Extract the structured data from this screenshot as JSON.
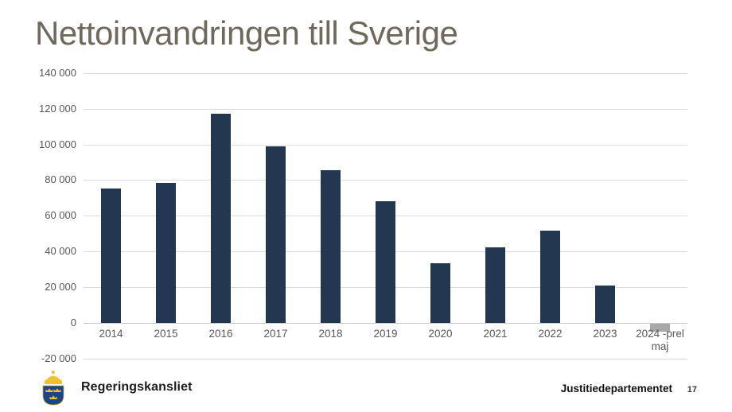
{
  "slide": {
    "title": "Nettoinvandringen till Sverige"
  },
  "chart_data": {
    "type": "bar",
    "title": "Nettoinvandringen till Sverige",
    "categories": [
      "2014",
      "2015",
      "2016",
      "2017",
      "2018",
      "2019",
      "2020",
      "2021",
      "2022",
      "2023",
      "2024 -prel maj"
    ],
    "values": [
      75500,
      78500,
      117000,
      99000,
      85600,
      68000,
      33500,
      42300,
      51800,
      21000,
      -4500
    ],
    "colors": [
      "#233850",
      "#233850",
      "#233850",
      "#233850",
      "#233850",
      "#233850",
      "#233850",
      "#233850",
      "#233850",
      "#233850",
      "#a8a8a8"
    ],
    "yticks": [
      {
        "label": "140 000",
        "value": 140000
      },
      {
        "label": "120 000",
        "value": 120000
      },
      {
        "label": "100 000",
        "value": 100000
      },
      {
        "label": "80 000",
        "value": 80000
      },
      {
        "label": "60 000",
        "value": 60000
      },
      {
        "label": "40 000",
        "value": 40000
      },
      {
        "label": "20 000",
        "value": 20000
      },
      {
        "label": "0",
        "value": 0
      },
      {
        "label": "-20 000",
        "value": -20000
      }
    ],
    "ylim": [
      -20000,
      140000
    ],
    "xlabel": "",
    "ylabel": "",
    "grid": true,
    "legend": null
  },
  "footer": {
    "agency": "Regeringskansliet",
    "department": "Justitiedepartementet",
    "page_number": "17"
  },
  "colors": {
    "title_text": "#6e695c",
    "bar": "#233850",
    "bar_preliminary": "#a8a8a8",
    "axis_text": "#595959",
    "gridline": "#dcdcdc",
    "shield_blue": "#1c4587",
    "crown_gold": "#f2c12e"
  }
}
